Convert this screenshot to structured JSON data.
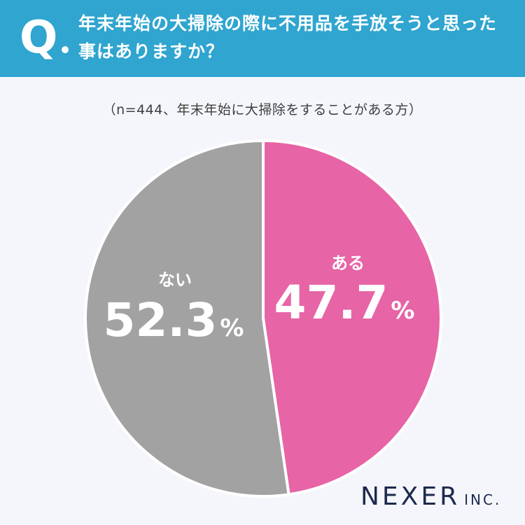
{
  "header": {
    "q_mark": "Q",
    "question": "年末年始の大掃除の際に不用品を手放そうと思った事はありますか？"
  },
  "note": "（n=444、年末年始に大掃除をすることがある方）",
  "brand": {
    "name": "NEXER",
    "suffix": "INC."
  },
  "colors": {
    "header_bg": "#2fa5cf",
    "aru": "#e764a6",
    "nai": "#a2a2a2"
  },
  "chart_data": {
    "type": "pie",
    "unit": "%",
    "slices": [
      {
        "label": "ある",
        "value": 47.7,
        "color": "#e764a6"
      },
      {
        "label": "ない",
        "value": 52.3,
        "color": "#a2a2a2"
      }
    ]
  }
}
